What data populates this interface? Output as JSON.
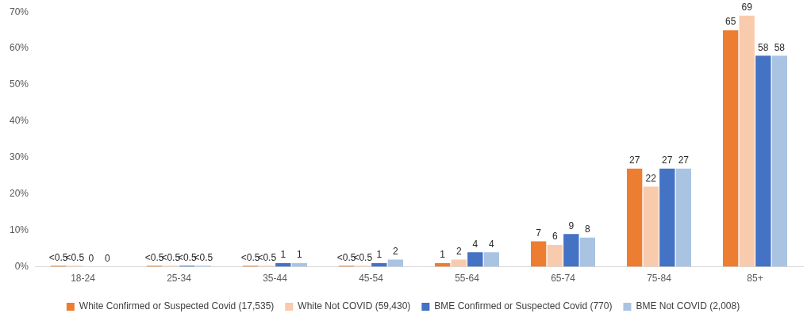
{
  "chart_data": {
    "type": "bar",
    "categories": [
      "18-24",
      "25-34",
      "35-44",
      "45-54",
      "55-64",
      "65-74",
      "75-84",
      "85+"
    ],
    "series": [
      {
        "name": "White Confirmed or Suspected Covid (17,535)",
        "color": "#ed7d31",
        "values": [
          0.3,
          0.3,
          0.3,
          0.3,
          1,
          7,
          27,
          65
        ],
        "value_labels": [
          "<0.5",
          "<0.5",
          "<0.5",
          "<0.5",
          "1",
          "7",
          "27",
          "65"
        ]
      },
      {
        "name": "White Not COVID (59,430)",
        "color": "#f8cbad",
        "values": [
          0.3,
          0.3,
          0.3,
          0.3,
          2,
          6,
          22,
          69
        ],
        "value_labels": [
          "<0.5",
          "<0.5",
          "<0.5",
          "<0.5",
          "2",
          "6",
          "22",
          "69"
        ]
      },
      {
        "name": "BME Confirmed or Suspected Covid (770)",
        "color": "#4472c4",
        "values": [
          0,
          0.3,
          1,
          1,
          4,
          9,
          27,
          58
        ],
        "value_labels": [
          "0",
          "<0.5",
          "1",
          "1",
          "4",
          "9",
          "27",
          "58"
        ]
      },
      {
        "name": "BME Not COVID (2,008)",
        "color": "#a9c4e3",
        "values": [
          0,
          0.3,
          1,
          2,
          4,
          8,
          27,
          58
        ],
        "value_labels": [
          "0",
          "<0.5",
          "1",
          "2",
          "4",
          "8",
          "27",
          "58"
        ]
      }
    ],
    "ylim": [
      0,
      70
    ],
    "yticks": [
      {
        "value": 0,
        "label": "0%"
      },
      {
        "value": 10,
        "label": "10%"
      },
      {
        "value": 20,
        "label": "20%"
      },
      {
        "value": 30,
        "label": "30%"
      },
      {
        "value": 40,
        "label": "40%"
      },
      {
        "value": 50,
        "label": "50%"
      },
      {
        "value": 60,
        "label": "60%"
      },
      {
        "value": 70,
        "label": "70%"
      }
    ],
    "grid": false,
    "legend": "bottom",
    "data_labels": true
  }
}
